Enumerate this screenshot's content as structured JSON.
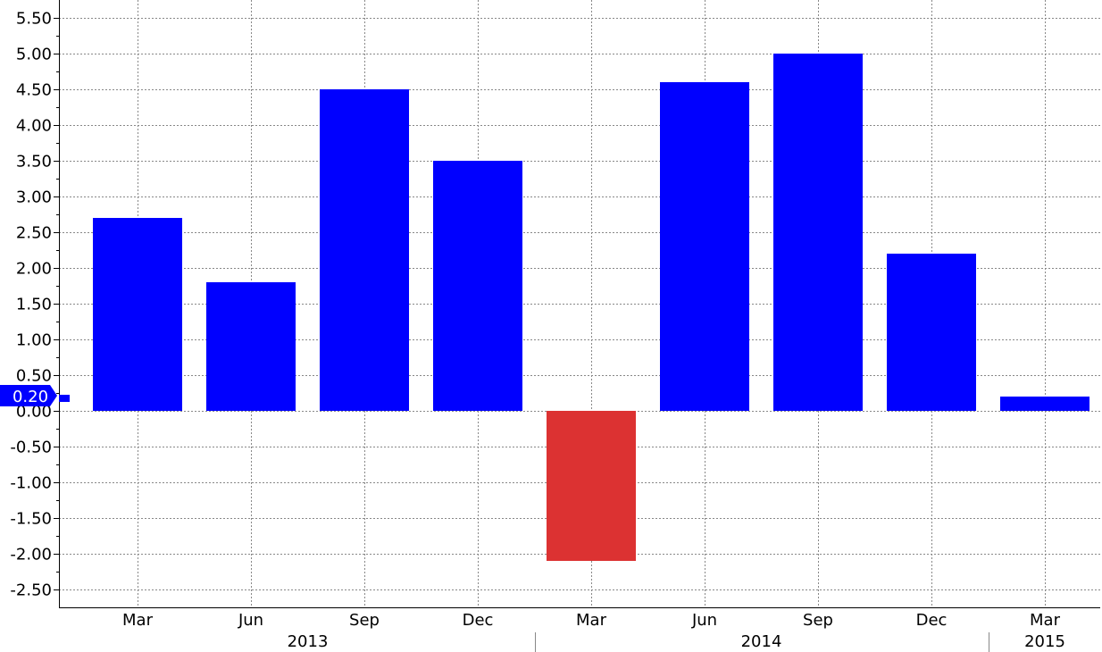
{
  "chart_data": {
    "type": "bar",
    "categories": [
      "Mar",
      "Jun",
      "Sep",
      "Dec",
      "Mar",
      "Jun",
      "Sep",
      "Dec",
      "Mar"
    ],
    "values": [
      2.7,
      1.8,
      4.5,
      3.5,
      -2.1,
      4.6,
      5.0,
      2.2,
      0.2
    ],
    "year_groups": [
      {
        "label": "2013",
        "start": 0,
        "end": 3
      },
      {
        "label": "2014",
        "start": 4,
        "end": 7
      },
      {
        "label": "2015",
        "start": 8,
        "end": 8
      }
    ],
    "ylim": [
      -2.75,
      5.75
    ],
    "yticks": [
      -2.5,
      -2.0,
      -1.5,
      -1.0,
      -0.5,
      0.0,
      0.5,
      1.0,
      1.5,
      2.0,
      2.5,
      3.0,
      3.5,
      4.0,
      4.5,
      5.0,
      5.5
    ],
    "ytick_labels": [
      "-2.50",
      "-2.00",
      "-1.50",
      "-1.00",
      "-0.50",
      "0.00",
      "0.50",
      "1.00",
      "1.50",
      "2.00",
      "2.50",
      "3.00",
      "3.50",
      "4.00",
      "4.50",
      "5.00",
      "5.50"
    ],
    "last_value_label": "0.20",
    "last_value": 0.2,
    "positive_color": "#0000ff",
    "negative_color": "#dc3232",
    "callout_color": "#0000ff",
    "grid": true,
    "legend": "none"
  }
}
